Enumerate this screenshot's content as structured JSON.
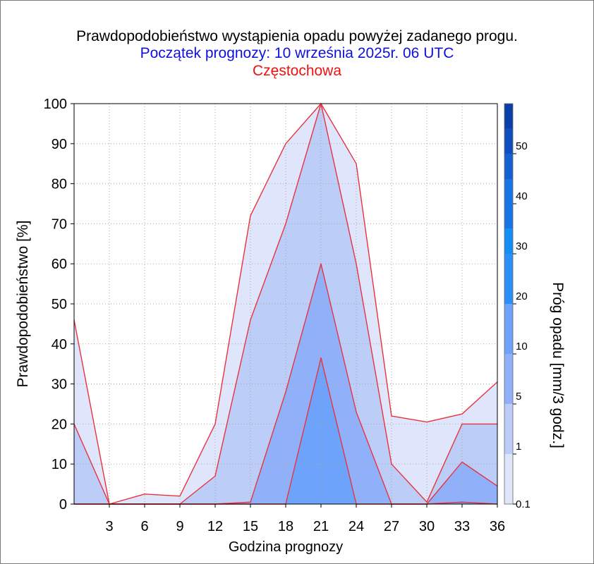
{
  "header": {
    "title": "Prawdopodobieństwo wystąpienia opadu powyżej zadanego progu.",
    "subtitle": "Początek prognozy: 10 września 2025r. 06 UTC",
    "location": "Częstochowa"
  },
  "colors": {
    "outline": "#e8333f",
    "title": "#000000",
    "subtitle": "#1010dd",
    "location": "#ee1111",
    "grid": "#a8a8a8"
  },
  "chart_data": {
    "type": "area",
    "title": "Prawdopodobieństwo wystąpienia opadu powyżej zadanego progu.",
    "xlabel": "Godzina prognozy",
    "ylabel": "Prawdopodobieństwo [%]",
    "xlim": [
      0,
      36
    ],
    "ylim": [
      0,
      100
    ],
    "x": [
      0,
      3,
      6,
      9,
      12,
      15,
      18,
      21,
      24,
      27,
      30,
      33,
      36
    ],
    "x_ticks": [
      3,
      6,
      9,
      12,
      15,
      18,
      21,
      24,
      27,
      30,
      33,
      36
    ],
    "y_ticks": [
      0,
      10,
      20,
      30,
      40,
      50,
      60,
      70,
      80,
      90,
      100
    ],
    "grid": true,
    "series": [
      {
        "name": "0.1",
        "color": "#dfe6fb",
        "values": [
          46,
          0,
          2.5,
          2,
          20,
          72,
          90,
          100,
          85,
          22,
          20.5,
          22.5,
          30.5
        ]
      },
      {
        "name": "1",
        "color": "#bccdf8",
        "values": [
          20,
          0,
          0,
          0,
          7,
          46,
          70,
          100,
          60,
          10,
          0.5,
          20,
          20
        ]
      },
      {
        "name": "5",
        "color": "#90b1f9",
        "values": [
          0,
          0,
          0,
          0,
          0,
          0.5,
          28,
          60,
          23,
          0,
          0,
          10.5,
          4.5
        ]
      },
      {
        "name": "10",
        "color": "#6ea3fb",
        "values": [
          0,
          0,
          0,
          0,
          0,
          0,
          0,
          36.5,
          0,
          0,
          0,
          0.5,
          0
        ]
      }
    ],
    "colorbar": {
      "label": "Próg opadu [mm/3 godz.]",
      "tick_labels": [
        "0.1",
        "1",
        "5",
        "10",
        "20",
        "30",
        "40",
        "50"
      ],
      "colors": [
        "#dfe6fb",
        "#bccdf8",
        "#90b1f9",
        "#6ea3fb",
        "#2c8ef7",
        "#138ef4",
        "#1875e3",
        "#1460d3",
        "#0f4ebd",
        "#0b3fa8"
      ]
    }
  }
}
